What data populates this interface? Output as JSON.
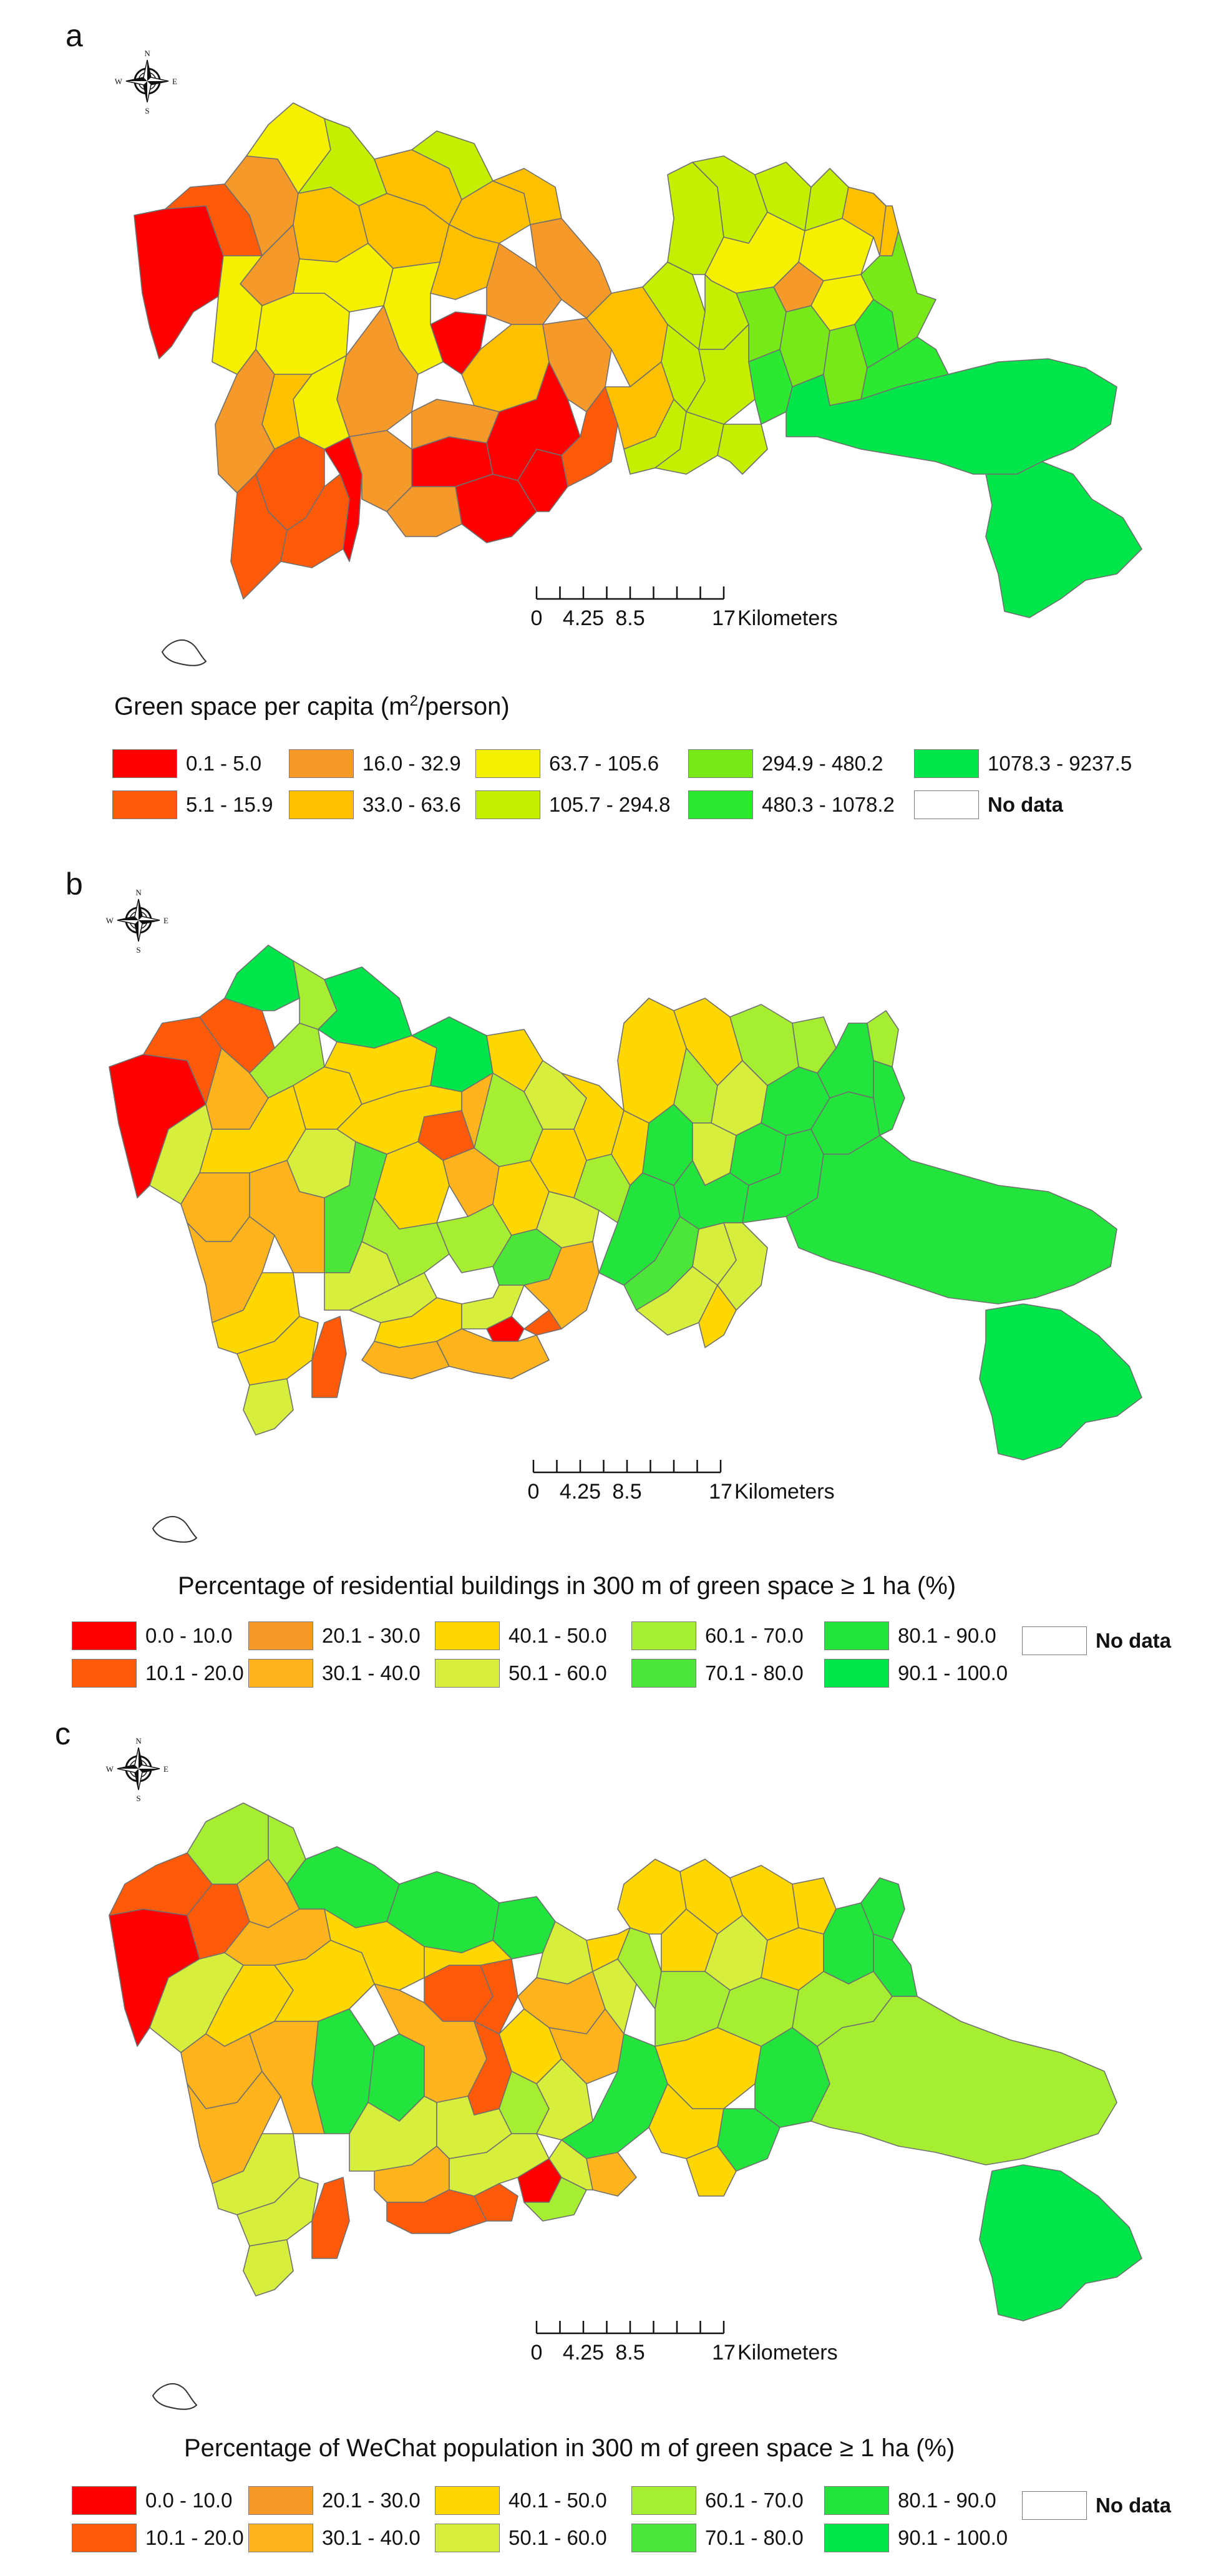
{
  "panels": [
    {
      "letter": "a",
      "legend_title_before": "Green space per capita (m",
      "legend_title_sup": "2",
      "legend_title_after": "/person)",
      "classes": [
        {
          "label": "0.1 - 5.0",
          "color": "#ff0000"
        },
        {
          "label": "5.1 - 15.9",
          "color": "#ff5a0a"
        },
        {
          "label": "16.0 - 32.9",
          "color": "#f59a2a"
        },
        {
          "label": "33.0 - 63.6",
          "color": "#ffc000"
        },
        {
          "label": "63.7 - 105.6",
          "color": "#f5f000"
        },
        {
          "label": "105.7 - 294.8",
          "color": "#c4f000"
        },
        {
          "label": "294.9 - 480.2",
          "color": "#77e818"
        },
        {
          "label": "480.3 - 1078.2",
          "color": "#2be830"
        },
        {
          "label": "1078.3 - 9237.5",
          "color": "#00e64a"
        },
        {
          "label": "No data",
          "color": "#ffffff",
          "bold": true
        }
      ]
    },
    {
      "letter": "b",
      "legend_title": "Percentage of residential buildings in 300 m of green space ≥ 1 ha (%)",
      "classes": [
        {
          "label": "0.0 - 10.0",
          "color": "#ff0000"
        },
        {
          "label": "10.1 - 20.0",
          "color": "#ff5a0a"
        },
        {
          "label": "20.1 - 30.0",
          "color": "#f59a2a"
        },
        {
          "label": "30.1 - 40.0",
          "color": "#ffb41e"
        },
        {
          "label": "40.1 - 50.0",
          "color": "#ffd700"
        },
        {
          "label": "50.1 - 60.0",
          "color": "#d7ee3c"
        },
        {
          "label": "60.1 - 70.0",
          "color": "#a5ee32"
        },
        {
          "label": "70.1 - 80.0",
          "color": "#4ce63a"
        },
        {
          "label": "80.1 - 90.0",
          "color": "#22e43c"
        },
        {
          "label": "90.1 - 100.0",
          "color": "#00e64a"
        },
        {
          "label": "No data",
          "color": "#ffffff",
          "bold": true
        }
      ]
    },
    {
      "letter": "c",
      "legend_title": "Percentage of WeChat population in 300 m of green space ≥ 1 ha (%)",
      "classes": [
        {
          "label": "0.0 - 10.0",
          "color": "#ff0000"
        },
        {
          "label": "10.1 - 20.0",
          "color": "#ff5a0a"
        },
        {
          "label": "20.1 - 30.0",
          "color": "#f59a2a"
        },
        {
          "label": "30.1 - 40.0",
          "color": "#ffb41e"
        },
        {
          "label": "40.1 - 50.0",
          "color": "#ffd700"
        },
        {
          "label": "50.1 - 60.0",
          "color": "#d7ee3c"
        },
        {
          "label": "60.1 - 70.0",
          "color": "#a5ee32"
        },
        {
          "label": "70.1 - 80.0",
          "color": "#4ce63a"
        },
        {
          "label": "80.1 - 90.0",
          "color": "#22e43c"
        },
        {
          "label": "90.1 - 100.0",
          "color": "#00e64a"
        },
        {
          "label": "No data",
          "color": "#ffffff",
          "bold": true
        }
      ]
    }
  ],
  "scale_bar": {
    "ticks": [
      "0",
      "4.25",
      "8.5",
      "17"
    ],
    "unit": "Kilometers"
  },
  "compass": {
    "n": "N",
    "s": "S",
    "e": "E",
    "w": "W"
  }
}
